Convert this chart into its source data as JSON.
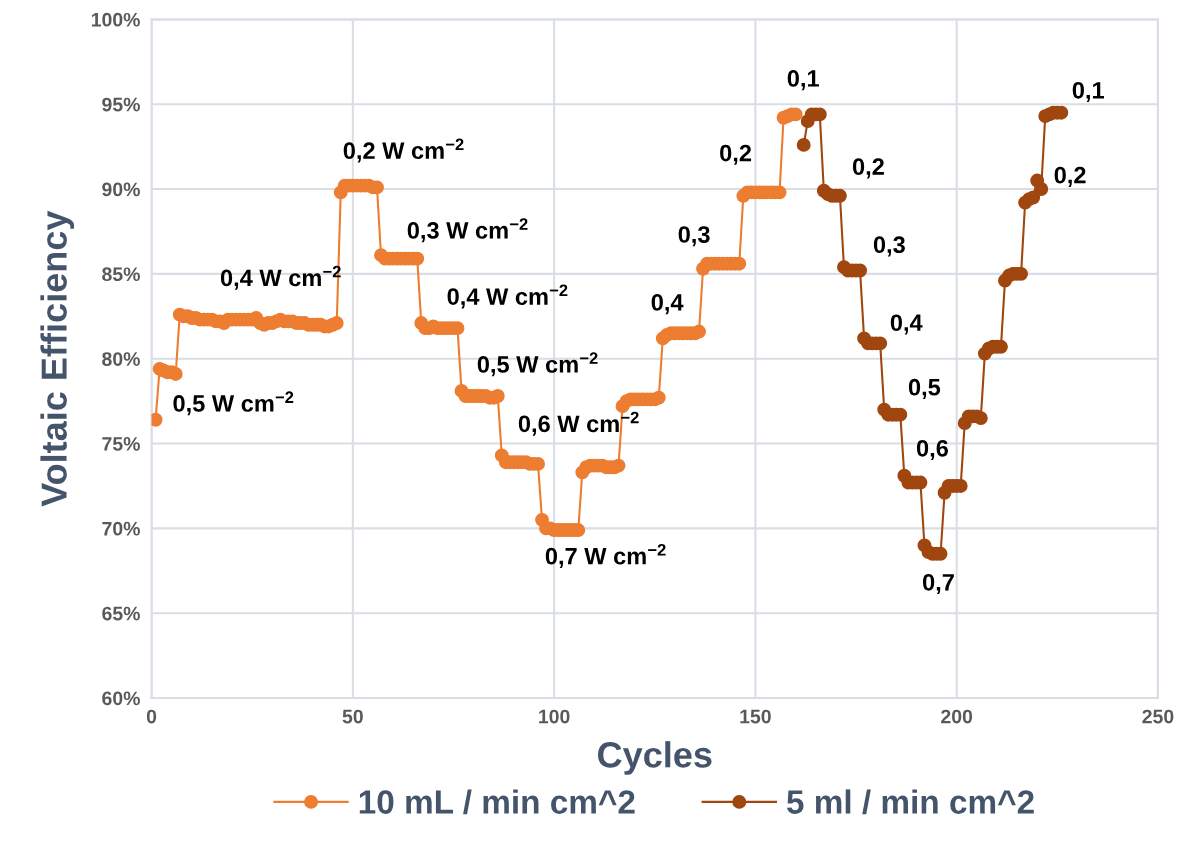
{
  "chart_data": {
    "type": "line",
    "xlabel": "Cycles",
    "ylabel": "Voltaic Efficiency",
    "xlim": [
      0,
      250
    ],
    "xticks": [
      0,
      50,
      100,
      150,
      200,
      250
    ],
    "ylim": [
      60,
      100
    ],
    "yticks": [
      {
        "value": 60,
        "label": "60%"
      },
      {
        "value": 65,
        "label": "65%"
      },
      {
        "value": 70,
        "label": "70%"
      },
      {
        "value": 75,
        "label": "75%"
      },
      {
        "value": 80,
        "label": "80%"
      },
      {
        "value": 85,
        "label": "85%"
      },
      {
        "value": 90,
        "label": "90%"
      },
      {
        "value": 95,
        "label": "95%"
      },
      {
        "value": 100,
        "label": "100%"
      }
    ],
    "grid": true,
    "legend": "bottom",
    "marker": "circle",
    "line_style": "solid",
    "series": [
      {
        "name": "10 mL / min cm^2",
        "color": "#ed7d31",
        "x": [
          1,
          2,
          3,
          4,
          5,
          6,
          7,
          8,
          9,
          10,
          11,
          12,
          13,
          14,
          15,
          16,
          17,
          18,
          19,
          20,
          21,
          22,
          23,
          24,
          25,
          26,
          27,
          28,
          29,
          30,
          31,
          32,
          33,
          34,
          35,
          36,
          37,
          38,
          39,
          40,
          41,
          42,
          43,
          44,
          45,
          46,
          47,
          48,
          49,
          50,
          51,
          52,
          53,
          54,
          55,
          56,
          57,
          58,
          59,
          60,
          61,
          62,
          63,
          64,
          65,
          66,
          67,
          68,
          69,
          70,
          71,
          72,
          73,
          74,
          75,
          76,
          77,
          78,
          79,
          80,
          81,
          82,
          83,
          84,
          85,
          86,
          87,
          88,
          89,
          90,
          91,
          92,
          93,
          94,
          95,
          96,
          97,
          98,
          99,
          100,
          101,
          102,
          103,
          104,
          105,
          106,
          107,
          108,
          109,
          110,
          111,
          112,
          113,
          114,
          115,
          116,
          117,
          118,
          119,
          120,
          121,
          122,
          123,
          124,
          125,
          126,
          127,
          128,
          129,
          130,
          131,
          132,
          133,
          134,
          135,
          136,
          137,
          138,
          139,
          140,
          141,
          142,
          143,
          144,
          145,
          146,
          147,
          148,
          149,
          150,
          151,
          152,
          153,
          154,
          155,
          156,
          157,
          158,
          159,
          160
        ],
        "values": [
          76.4,
          79.4,
          79.3,
          79.2,
          79.2,
          79.1,
          82.6,
          82.5,
          82.5,
          82.4,
          82.4,
          82.3,
          82.3,
          82.3,
          82.3,
          82.2,
          82.2,
          82.1,
          82.3,
          82.3,
          82.3,
          82.3,
          82.3,
          82.3,
          82.3,
          82.4,
          82.1,
          82.0,
          82.1,
          82.1,
          82.2,
          82.3,
          82.2,
          82.2,
          82.2,
          82.1,
          82.1,
          82.1,
          82.0,
          82.0,
          82.0,
          82.0,
          81.9,
          81.9,
          82.0,
          82.1,
          89.8,
          90.2,
          90.2,
          90.2,
          90.2,
          90.2,
          90.2,
          90.2,
          90.1,
          90.1,
          86.1,
          85.9,
          85.9,
          85.9,
          85.9,
          85.9,
          85.9,
          85.9,
          85.9,
          85.9,
          82.1,
          81.8,
          81.8,
          81.9,
          81.8,
          81.8,
          81.8,
          81.8,
          81.8,
          81.8,
          78.1,
          77.8,
          77.8,
          77.8,
          77.8,
          77.8,
          77.8,
          77.7,
          77.7,
          77.8,
          74.3,
          73.9,
          73.9,
          73.9,
          73.9,
          73.9,
          73.9,
          73.8,
          73.8,
          73.8,
          70.5,
          70.0,
          70.0,
          69.9,
          69.9,
          69.9,
          69.9,
          69.9,
          69.9,
          69.9,
          73.3,
          73.6,
          73.7,
          73.7,
          73.7,
          73.7,
          73.6,
          73.6,
          73.6,
          73.7,
          77.2,
          77.5,
          77.6,
          77.6,
          77.6,
          77.6,
          77.6,
          77.6,
          77.6,
          77.7,
          81.2,
          81.4,
          81.5,
          81.5,
          81.5,
          81.5,
          81.5,
          81.5,
          81.5,
          81.6,
          85.3,
          85.6,
          85.6,
          85.6,
          85.6,
          85.6,
          85.6,
          85.6,
          85.6,
          85.6,
          89.6,
          89.8,
          89.8,
          89.8,
          89.8,
          89.8,
          89.8,
          89.8,
          89.8,
          89.8,
          94.2,
          94.3,
          94.4,
          94.4
        ]
      },
      {
        "name": "5 ml / min cm^2",
        "color": "#a0460f",
        "x": [
          162,
          163,
          164,
          165,
          166,
          167,
          168,
          169,
          170,
          171,
          172,
          173,
          174,
          175,
          176,
          177,
          178,
          179,
          180,
          181,
          182,
          183,
          184,
          185,
          186,
          187,
          188,
          189,
          190,
          191,
          192,
          193,
          194,
          195,
          196,
          197,
          198,
          199,
          200,
          201,
          202,
          203,
          204,
          205,
          206,
          207,
          208,
          209,
          210,
          211,
          212,
          213,
          214,
          215,
          216,
          217,
          218,
          219,
          220,
          221,
          222,
          223,
          224,
          225,
          226
        ],
        "values": [
          92.6,
          94.0,
          94.4,
          94.4,
          94.4,
          89.9,
          89.7,
          89.6,
          89.6,
          89.6,
          85.4,
          85.2,
          85.2,
          85.2,
          85.2,
          81.2,
          80.9,
          80.9,
          80.9,
          80.9,
          77.0,
          76.7,
          76.7,
          76.7,
          76.7,
          73.1,
          72.7,
          72.7,
          72.7,
          72.7,
          69.0,
          68.6,
          68.5,
          68.5,
          68.5,
          72.1,
          72.5,
          72.5,
          72.5,
          72.5,
          76.2,
          76.6,
          76.6,
          76.6,
          76.5,
          80.3,
          80.6,
          80.7,
          80.7,
          80.7,
          84.6,
          84.9,
          85.0,
          85.0,
          85.0,
          89.2,
          89.4,
          89.5,
          90.5,
          90.0,
          94.3,
          94.4,
          94.5,
          94.5,
          94.5
        ]
      }
    ],
    "annotations": [
      "0,5 W cm$^{−2}$",
      "0,4 W cm$^{−2}$",
      "0,2 W cm$^{−2}$",
      "0,3 W cm$^{−2}$",
      "0,4 W cm$^{−2}$",
      "0,5 W cm$^{−2}$",
      "0,6 W cm$^{−2}$",
      "0,7 W cm$^{−2}$",
      "0,4",
      "0,3",
      "0,2",
      "0,1",
      "0,2",
      "0,3",
      "0,4",
      "0,5",
      "0,6",
      "0,7",
      "0,1",
      "0,2"
    ]
  }
}
